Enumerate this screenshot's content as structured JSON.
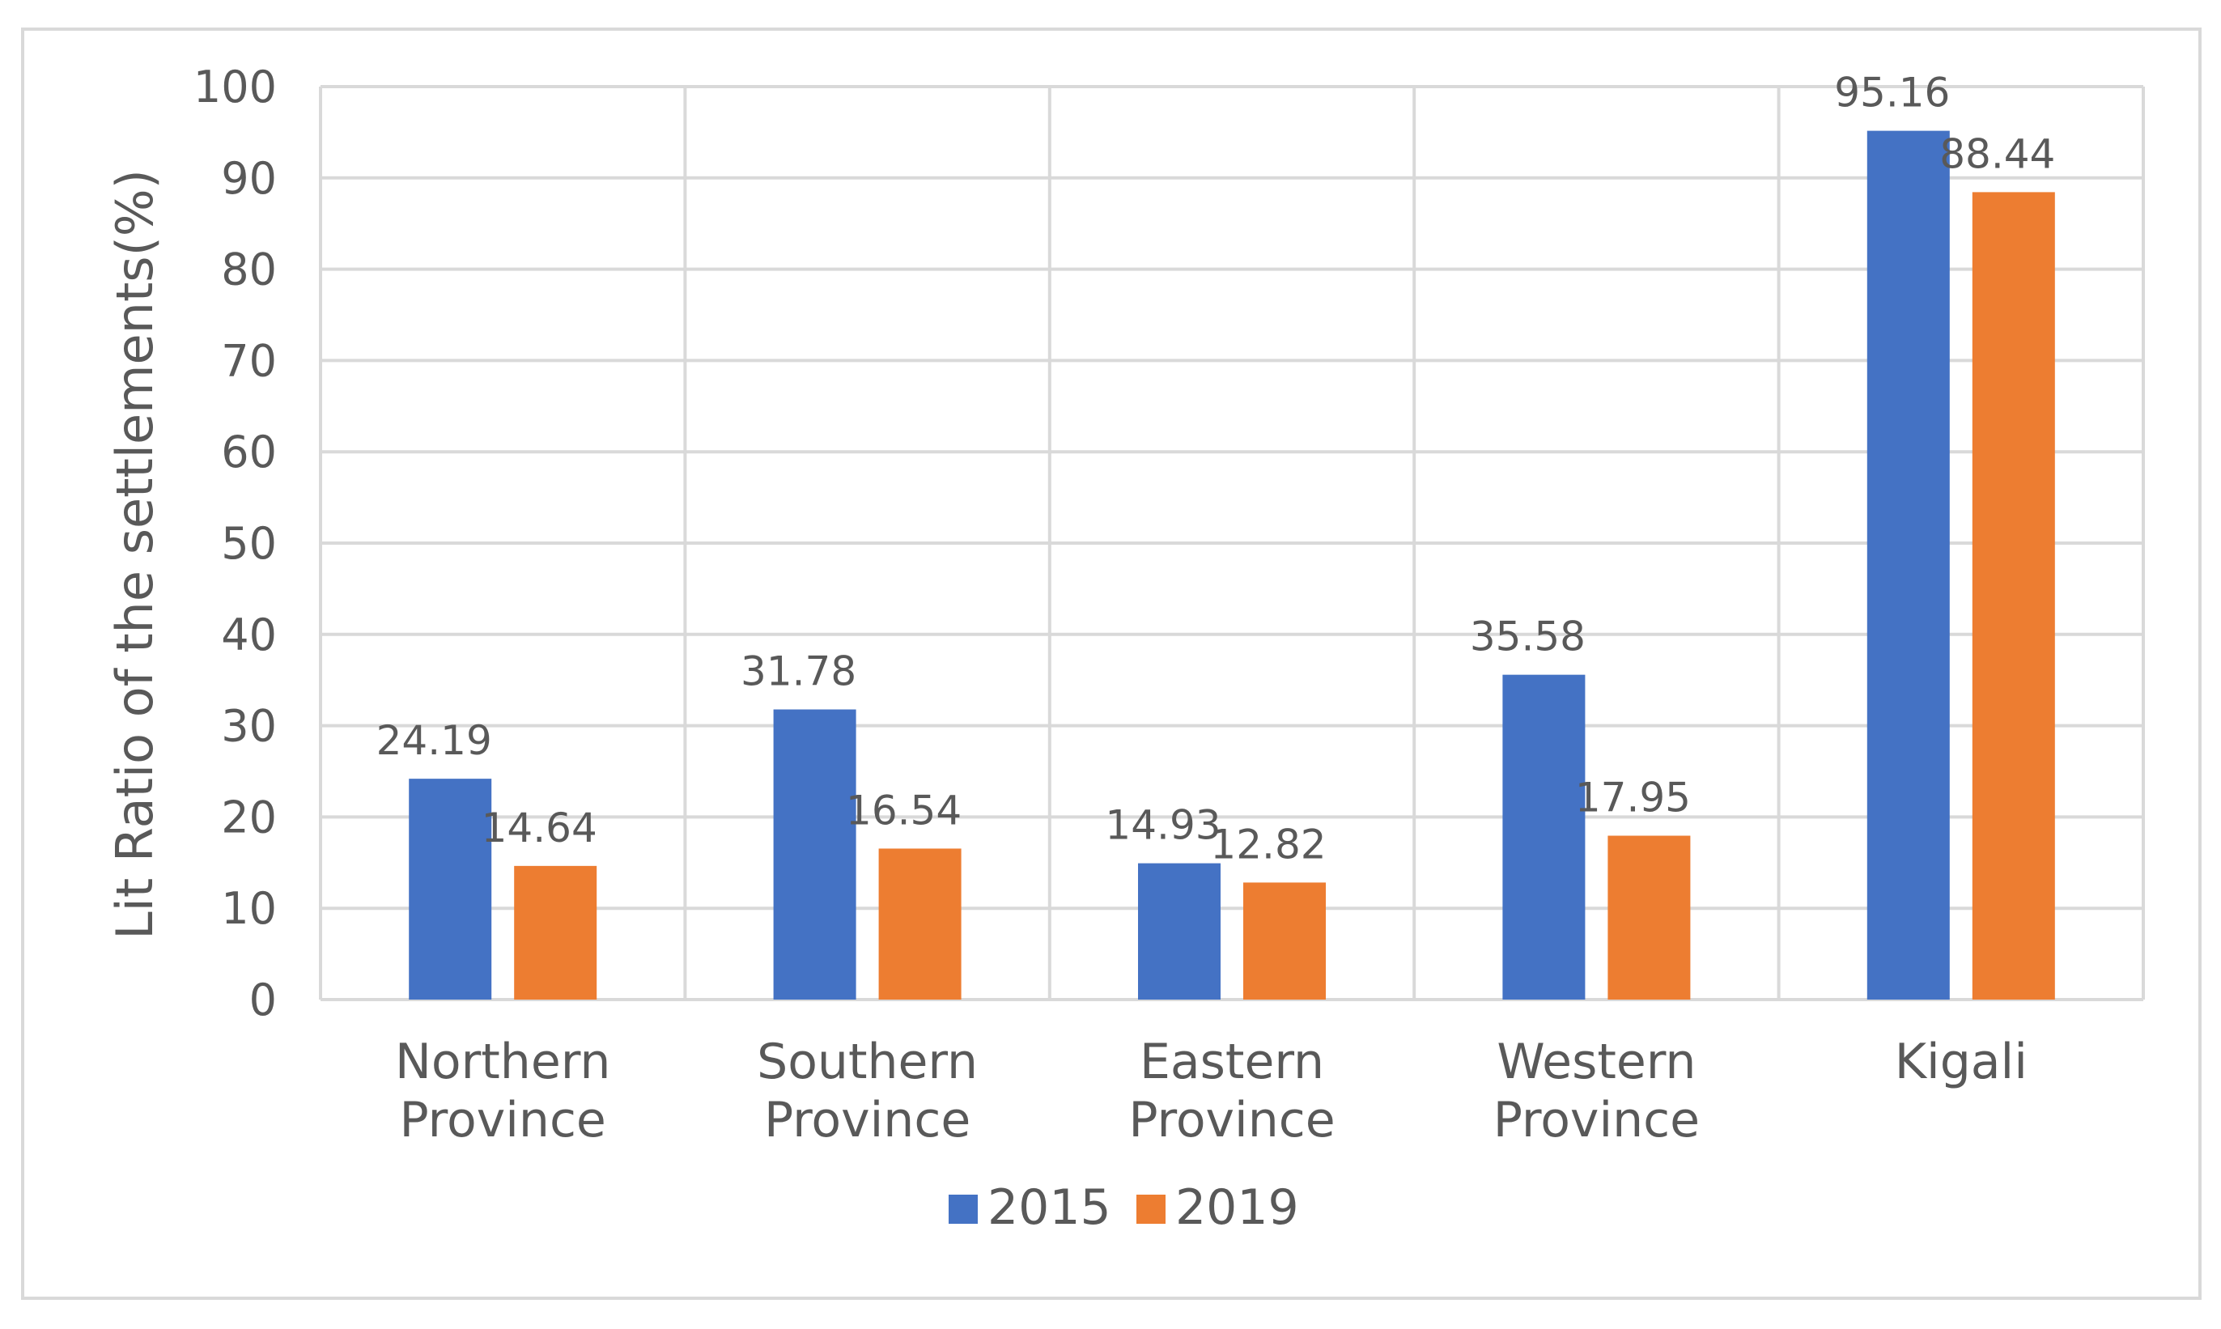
{
  "chart_data": {
    "type": "bar",
    "title": "",
    "xlabel": "",
    "ylabel": "Lit Ratio of the settlements(%)",
    "ylim": [
      0,
      100
    ],
    "yticks": [
      0,
      10,
      20,
      30,
      40,
      50,
      60,
      70,
      80,
      90,
      100
    ],
    "grid": true,
    "legend_position": "bottom",
    "categories": [
      [
        "Northern",
        "Province"
      ],
      [
        "Southern",
        "Province"
      ],
      [
        "Eastern",
        "Province"
      ],
      [
        "Western",
        "Province"
      ],
      [
        "Kigali"
      ]
    ],
    "series": [
      {
        "name": "2015",
        "color": "#4472C4",
        "values": [
          24.19,
          31.78,
          14.93,
          35.58,
          95.16
        ]
      },
      {
        "name": "2019",
        "color": "#ED7D31",
        "values": [
          14.64,
          16.54,
          12.82,
          17.95,
          88.44
        ]
      }
    ]
  },
  "colors": {
    "grid": "#d9d9d9",
    "border": "#d9d9d9",
    "text": "#595959"
  }
}
